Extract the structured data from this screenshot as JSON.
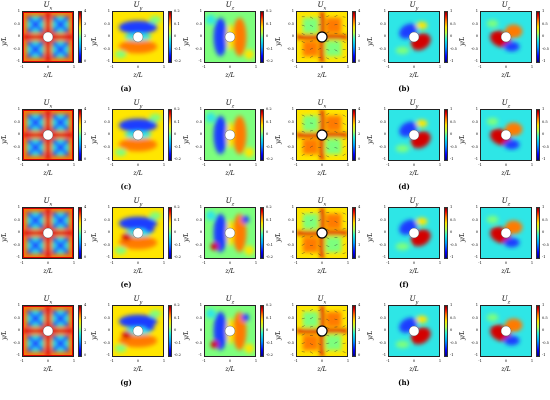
{
  "figure": {
    "axis_labels": {
      "x": "z/L",
      "y": "y/L"
    },
    "rows": [
      {
        "captions": [
          "(a)",
          "(b)"
        ],
        "panels": [
          {
            "title": "U_x",
            "colorbar": [
              "4",
              "3",
              "2",
              "1",
              "0"
            ],
            "xticks": [
              "-1",
              "0",
              "1"
            ],
            "yticks": [
              "1",
              "0.5",
              "0",
              "-0.5",
              "-1"
            ]
          },
          {
            "title": "U_y",
            "colorbar": [
              "0.2",
              "0.1",
              "0",
              "-0.1",
              "-0.2"
            ],
            "xticks": [
              "-1",
              "0",
              "1"
            ],
            "yticks": [
              "1",
              "0.5",
              "0",
              "-0.5",
              "-1"
            ]
          },
          {
            "title": "U_z",
            "colorbar": [
              "0.2",
              "0.1",
              "0",
              "-0.1",
              "-0.2"
            ],
            "xticks": [
              "-1",
              "0",
              "1"
            ],
            "yticks": [
              "1",
              "0.5",
              "0",
              "-0.5",
              "-1"
            ]
          },
          {
            "title": "U_x",
            "colorbar": [
              "4",
              "3",
              "2",
              "1",
              "0"
            ],
            "xticks": [
              "-1",
              "0",
              "1"
            ],
            "yticks": [
              "1",
              "0.5",
              "0",
              "-0.5",
              "-1"
            ]
          },
          {
            "title": "U_y",
            "colorbar": [
              "1",
              "0.5",
              "0",
              "-0.5",
              "-1"
            ],
            "xticks": [
              "-1",
              "0",
              "1"
            ],
            "yticks": [
              "1",
              "0.5",
              "0",
              "-0.5",
              "-1"
            ]
          },
          {
            "title": "U_z",
            "colorbar": [
              "1",
              "0.5",
              "0",
              "-0.5",
              "-1"
            ],
            "xticks": [
              "-1",
              "0",
              "1"
            ],
            "yticks": [
              "1",
              "0.5",
              "0",
              "-0.5",
              "-1"
            ]
          }
        ]
      },
      {
        "captions": [
          "(c)",
          "(d)"
        ],
        "panels": [
          {
            "title": "U_x",
            "colorbar": [
              "4",
              "3",
              "2",
              "1",
              "0"
            ],
            "xticks": [
              "-1",
              "0",
              "1"
            ],
            "yticks": [
              "1",
              "0.5",
              "0",
              "-0.5",
              "-1"
            ]
          },
          {
            "title": "U_y",
            "colorbar": [
              "0.2",
              "0.1",
              "0",
              "-0.1",
              "-0.2"
            ],
            "xticks": [
              "-1",
              "0",
              "1"
            ],
            "yticks": [
              "1",
              "0.5",
              "0",
              "-0.5",
              "-1"
            ]
          },
          {
            "title": "U_z",
            "colorbar": [
              "0.2",
              "0.1",
              "0",
              "-0.1",
              "-0.2"
            ],
            "xticks": [
              "-1",
              "0",
              "1"
            ],
            "yticks": [
              "1",
              "0.5",
              "0",
              "-0.5",
              "-1"
            ]
          },
          {
            "title": "U_x",
            "colorbar": [
              "4",
              "3",
              "2",
              "1",
              "0"
            ],
            "xticks": [
              "-1",
              "0",
              "1"
            ],
            "yticks": [
              "1",
              "0.5",
              "0",
              "-0.5",
              "-1"
            ]
          },
          {
            "title": "U_y",
            "colorbar": [
              "1",
              "0.5",
              "0",
              "-0.5",
              "-1"
            ],
            "xticks": [
              "-1",
              "0",
              "1"
            ],
            "yticks": [
              "1",
              "0.5",
              "0",
              "-0.5",
              "-1"
            ]
          },
          {
            "title": "U_z",
            "colorbar": [
              "1",
              "0.5",
              "0",
              "-0.5",
              "-1"
            ],
            "xticks": [
              "-1",
              "0",
              "1"
            ],
            "yticks": [
              "1",
              "0.5",
              "0",
              "-0.5",
              "-1"
            ]
          }
        ]
      },
      {
        "captions": [
          "(e)",
          "(f)"
        ],
        "panels": [
          {
            "title": "U_x",
            "colorbar": [
              "4",
              "3",
              "2",
              "1",
              "0"
            ],
            "xticks": [
              "-1",
              "0",
              "1"
            ],
            "yticks": [
              "1",
              "0.5",
              "0",
              "-0.5",
              "-1"
            ]
          },
          {
            "title": "U_y",
            "colorbar": [
              "0.2",
              "0.1",
              "0",
              "-0.1",
              "-0.2"
            ],
            "xticks": [
              "-1",
              "0",
              "1"
            ],
            "yticks": [
              "1",
              "0.5",
              "0",
              "-0.5",
              "-1"
            ]
          },
          {
            "title": "U_z",
            "colorbar": [
              "0.2",
              "0.1",
              "0",
              "-0.1",
              "-0.2"
            ],
            "xticks": [
              "-1",
              "0",
              "1"
            ],
            "yticks": [
              "1",
              "0.5",
              "0",
              "-0.5",
              "-1"
            ]
          },
          {
            "title": "U_x",
            "colorbar": [
              "4",
              "3",
              "2",
              "1",
              "0"
            ],
            "xticks": [
              "-1",
              "0",
              "1"
            ],
            "yticks": [
              "1",
              "0.5",
              "0",
              "-0.5",
              "-1"
            ]
          },
          {
            "title": "U_y",
            "colorbar": [
              "1",
              "0.5",
              "0",
              "-0.5",
              "-1"
            ],
            "xticks": [
              "-1",
              "0",
              "1"
            ],
            "yticks": [
              "1",
              "0.5",
              "0",
              "-0.5",
              "-1"
            ]
          },
          {
            "title": "U_z",
            "colorbar": [
              "1",
              "0.5",
              "0",
              "-0.5",
              "-1"
            ],
            "xticks": [
              "-1",
              "0",
              "1"
            ],
            "yticks": [
              "1",
              "0.5",
              "0",
              "-0.5",
              "-1"
            ]
          }
        ]
      },
      {
        "captions": [
          "(g)",
          "(h)"
        ],
        "panels": [
          {
            "title": "U_x",
            "colorbar": [
              "4",
              "3",
              "2",
              "1",
              "0"
            ],
            "xticks": [
              "-1",
              "0",
              "1"
            ],
            "yticks": [
              "1",
              "0.5",
              "0",
              "-0.5",
              "-1"
            ]
          },
          {
            "title": "U_y",
            "colorbar": [
              "0.2",
              "0.1",
              "0",
              "-0.1",
              "-0.2"
            ],
            "xticks": [
              "-1",
              "0",
              "1"
            ],
            "yticks": [
              "1",
              "0.5",
              "0",
              "-0.5",
              "-1"
            ]
          },
          {
            "title": "U_z",
            "colorbar": [
              "0.2",
              "0.1",
              "0",
              "-0.1",
              "-0.2"
            ],
            "xticks": [
              "-1",
              "0",
              "1"
            ],
            "yticks": [
              "1",
              "0.5",
              "0",
              "-0.5",
              "-1"
            ]
          },
          {
            "title": "U_x",
            "colorbar": [
              "4",
              "3",
              "2",
              "1",
              "0"
            ],
            "xticks": [
              "-1",
              "0",
              "1"
            ],
            "yticks": [
              "1",
              "0.5",
              "0",
              "-0.5",
              "-1"
            ]
          },
          {
            "title": "U_y",
            "colorbar": [
              "1",
              "0.5",
              "0",
              "-0.5",
              "-1"
            ],
            "xticks": [
              "-1",
              "0",
              "1"
            ],
            "yticks": [
              "1",
              "0.5",
              "0",
              "-0.5",
              "-1"
            ]
          },
          {
            "title": "U_z",
            "colorbar": [
              "1",
              "0.5",
              "0",
              "-0.5",
              "-1"
            ],
            "xticks": [
              "-1",
              "0",
              "1"
            ],
            "yticks": [
              "1",
              "0.5",
              "0",
              "-0.5",
              "-1"
            ]
          }
        ]
      }
    ],
    "colors": {
      "deep_blue": "#00008f",
      "blue": "#1e3cff",
      "cyan": "#2ee6e6",
      "green": "#7dff7d",
      "yellow": "#ffe600",
      "orange": "#ff7a00",
      "red": "#d40000",
      "dark_red": "#7f0000"
    }
  }
}
